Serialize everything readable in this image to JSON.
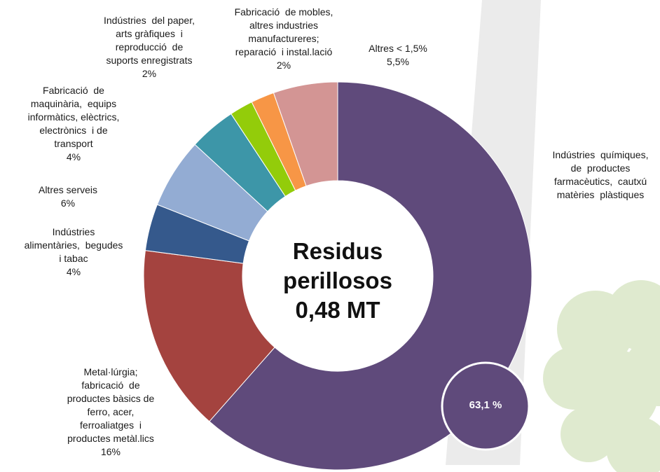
{
  "chart_data": {
    "type": "donut",
    "title": "Residus\nperillosos\n0,48 MT",
    "categories": [
      "Indústries  químiques,\nde  productes\nfarmacèutics,  cautxú\nmatèries  plàstiques",
      "Metal·lúrgia;\nfabricació  de\nproductes bàsics de\nferro, acer,\nferroaliatges  i\nproductes metàl.lics",
      "Indústries\nalimentàries,  begudes\ni tabac",
      "Altres serveis",
      "Fabricació  de\nmaquinària,  equips\ninformàtics, elèctrics,\nelectrònics  i de\ntransport",
      "Indústries  del paper,\narts gràfiques  i\nreproducció  de\nsuports enregistrats",
      "Fabricació  de mobles,\naltres industries\nmanufactureres;\nreparació  i instal.lació",
      "Altres < 1,5%"
    ],
    "values": [
      63.1,
      16,
      4,
      6,
      4,
      2,
      2,
      5.5
    ],
    "value_labels": [
      "63,1 %",
      "16%",
      "4%",
      "6%",
      "4%",
      "2%",
      "2%",
      "5,5%"
    ],
    "colors": [
      "#5f4a7b",
      "#a4433f",
      "#35598c",
      "#93acd3",
      "#3d96a8",
      "#93cc0a",
      "#f79646",
      "#d39594"
    ]
  }
}
